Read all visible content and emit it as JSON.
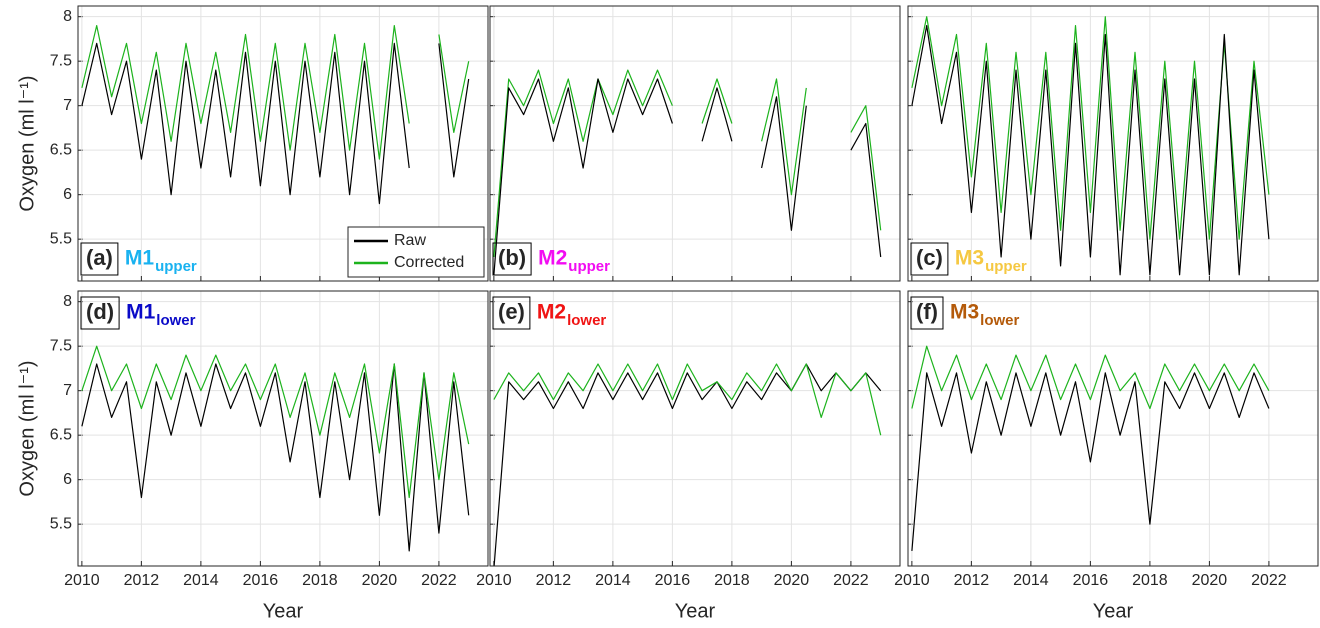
{
  "chart_data": [
    {
      "type": "line",
      "panel_label": "(a)",
      "station": "M1",
      "station_sub": "upper",
      "station_color": "#19b2f0",
      "ylabel": "Oxygen (ml l⁻¹)",
      "legend": "lower right",
      "x": [
        2010,
        2010.5,
        2011,
        2011.5,
        2012,
        2012.5,
        2013,
        2013.5,
        2014,
        2014.5,
        2015,
        2015.5,
        2016,
        2016.5,
        2017,
        2017.5,
        2018,
        2018.5,
        2019,
        2019.5,
        2020,
        2020.5,
        2021,
        2021.5,
        2022,
        2022.5,
        2023
      ],
      "series": [
        {
          "name": "Raw",
          "color": "#000000",
          "values": [
            7.0,
            7.7,
            6.9,
            7.5,
            6.4,
            7.4,
            6.0,
            7.5,
            6.3,
            7.4,
            6.2,
            7.6,
            6.1,
            7.5,
            6.0,
            7.5,
            6.2,
            7.6,
            6.0,
            7.5,
            5.9,
            7.7,
            6.3,
            null,
            7.7,
            6.2,
            7.3
          ]
        },
        {
          "name": "Corrected",
          "color": "#1db31d",
          "values": [
            7.2,
            7.9,
            7.1,
            7.7,
            6.8,
            7.6,
            6.6,
            7.7,
            6.8,
            7.6,
            6.7,
            7.8,
            6.6,
            7.7,
            6.5,
            7.7,
            6.7,
            7.8,
            6.5,
            7.7,
            6.4,
            7.9,
            6.8,
            null,
            7.8,
            6.7,
            7.5
          ]
        }
      ],
      "xlim": [
        2009.87,
        2023.65
      ],
      "xticks": [
        2010,
        2012,
        2014,
        2016,
        2018,
        2020,
        2022
      ],
      "ylim": [
        5.03,
        8.12
      ],
      "yticks": [
        5.5,
        6,
        6.5,
        7,
        7.5,
        8
      ],
      "grid": true
    },
    {
      "type": "line",
      "panel_label": "(b)",
      "station": "M2",
      "station_sub": "upper",
      "station_color": "#f20cf2",
      "x": [
        2010,
        2010.5,
        2011,
        2011.5,
        2012,
        2012.5,
        2013,
        2013.5,
        2014,
        2014.5,
        2015,
        2015.5,
        2016,
        2016.5,
        2017,
        2017.5,
        2018,
        2018.5,
        2019,
        2019.5,
        2020,
        2020.5,
        2021,
        2021.5,
        2022,
        2022.5,
        2023
      ],
      "series": [
        {
          "name": "Corrected",
          "color": "#1db31d",
          "values": [
            5.3,
            7.3,
            7.0,
            7.4,
            6.8,
            7.3,
            6.6,
            7.3,
            6.9,
            7.4,
            7.0,
            7.4,
            7.0,
            null,
            6.8,
            7.3,
            6.8,
            null,
            6.6,
            7.3,
            6.0,
            7.2,
            null,
            null,
            6.7,
            7.0,
            5.6
          ]
        },
        {
          "name": "Raw",
          "color": "#000000",
          "values": [
            5.1,
            7.2,
            6.9,
            7.3,
            6.6,
            7.2,
            6.3,
            7.3,
            6.7,
            7.3,
            6.9,
            7.3,
            6.8,
            null,
            6.6,
            7.2,
            6.6,
            null,
            6.3,
            7.1,
            5.6,
            7.0,
            null,
            null,
            6.5,
            6.8,
            5.3
          ]
        }
      ],
      "xlim": [
        2009.87,
        2023.65
      ],
      "xticks": [
        2010,
        2012,
        2014,
        2016,
        2018,
        2020,
        2022
      ],
      "ylim": [
        5.03,
        8.12
      ],
      "yticks": [
        5.5,
        6,
        6.5,
        7,
        7.5,
        8
      ],
      "grid": true
    },
    {
      "type": "line",
      "panel_label": "(c)",
      "station": "M3",
      "station_sub": "upper",
      "station_color": "#f5c842",
      "x": [
        2010,
        2010.5,
        2011,
        2011.5,
        2012,
        2012.5,
        2013,
        2013.5,
        2014,
        2014.5,
        2015,
        2015.5,
        2016,
        2016.5,
        2017,
        2017.5,
        2018,
        2018.5,
        2019,
        2019.5,
        2020,
        2020.5,
        2021,
        2021.5,
        2022
      ],
      "series": [
        {
          "name": "Corrected",
          "color": "#1db31d",
          "values": [
            7.2,
            8.0,
            7.0,
            7.8,
            6.2,
            7.7,
            5.8,
            7.6,
            6.0,
            7.6,
            5.6,
            7.9,
            5.8,
            8.0,
            5.6,
            7.6,
            5.5,
            7.5,
            5.5,
            7.5,
            5.5,
            7.7,
            5.5,
            7.5,
            6.0
          ]
        },
        {
          "name": "Raw",
          "color": "#000000",
          "values": [
            7.0,
            7.9,
            6.8,
            7.6,
            5.8,
            7.5,
            5.3,
            7.4,
            5.5,
            7.4,
            5.2,
            7.7,
            5.3,
            7.8,
            5.1,
            7.4,
            5.1,
            7.3,
            5.1,
            7.3,
            5.1,
            7.8,
            5.1,
            7.4,
            5.5
          ]
        }
      ],
      "xlim": [
        2009.87,
        2023.65
      ],
      "xticks": [
        2010,
        2012,
        2014,
        2016,
        2018,
        2020,
        2022
      ],
      "ylim": [
        5.03,
        8.12
      ],
      "yticks": [
        5.5,
        6,
        6.5,
        7,
        7.5,
        8
      ],
      "grid": true
    },
    {
      "type": "line",
      "panel_label": "(d)",
      "station": "M1",
      "station_sub": "lower",
      "station_color": "#0a0ac8",
      "ylabel": "Oxygen (ml l⁻¹)",
      "xlabel": "Year",
      "x": [
        2010,
        2010.5,
        2011,
        2011.5,
        2012,
        2012.5,
        2013,
        2013.5,
        2014,
        2014.5,
        2015,
        2015.5,
        2016,
        2016.5,
        2017,
        2017.5,
        2018,
        2018.5,
        2019,
        2019.5,
        2020,
        2020.5,
        2021,
        2021.5,
        2022,
        2022.5,
        2023
      ],
      "series": [
        {
          "name": "Raw",
          "color": "#000000",
          "values": [
            6.6,
            7.3,
            6.7,
            7.1,
            5.8,
            7.1,
            6.5,
            7.2,
            6.6,
            7.3,
            6.8,
            7.2,
            6.6,
            7.2,
            6.2,
            7.1,
            5.8,
            7.1,
            6.0,
            7.2,
            5.6,
            7.3,
            5.2,
            7.2,
            5.4,
            7.1,
            5.6
          ]
        },
        {
          "name": "Corrected",
          "color": "#1db31d",
          "values": [
            7.0,
            7.5,
            7.0,
            7.3,
            6.8,
            7.3,
            6.9,
            7.4,
            7.0,
            7.4,
            7.0,
            7.3,
            6.9,
            7.3,
            6.7,
            7.2,
            6.5,
            7.2,
            6.7,
            7.3,
            6.3,
            7.3,
            5.8,
            7.2,
            6.0,
            7.2,
            6.4
          ]
        }
      ],
      "xlim": [
        2009.87,
        2023.65
      ],
      "xticks": [
        2010,
        2012,
        2014,
        2016,
        2018,
        2020,
        2022
      ],
      "ylim": [
        5.03,
        8.12
      ],
      "yticks": [
        5.5,
        6,
        6.5,
        7,
        7.5,
        8
      ],
      "grid": true
    },
    {
      "type": "line",
      "panel_label": "(e)",
      "station": "M2",
      "station_sub": "lower",
      "station_color": "#f01414",
      "xlabel": "Year",
      "x": [
        2010,
        2010.5,
        2011,
        2011.5,
        2012,
        2012.5,
        2013,
        2013.5,
        2014,
        2014.5,
        2015,
        2015.5,
        2016,
        2016.5,
        2017,
        2017.5,
        2018,
        2018.5,
        2019,
        2019.5,
        2020,
        2020.5,
        2021,
        2021.5,
        2022,
        2022.5,
        2023
      ],
      "series": [
        {
          "name": "Raw",
          "color": "#000000",
          "values": [
            5.0,
            7.1,
            6.9,
            7.1,
            6.8,
            7.1,
            6.8,
            7.2,
            6.9,
            7.2,
            6.9,
            7.2,
            6.8,
            7.2,
            6.9,
            7.1,
            6.8,
            7.1,
            6.9,
            7.2,
            7.0,
            7.3,
            7.0,
            7.2,
            7.0,
            7.2,
            7.0
          ]
        },
        {
          "name": "Corrected",
          "color": "#1db31d",
          "values": [
            6.9,
            7.2,
            7.0,
            7.2,
            6.9,
            7.2,
            7.0,
            7.3,
            7.0,
            7.3,
            7.0,
            7.3,
            6.9,
            7.3,
            7.0,
            7.1,
            6.9,
            7.2,
            7.0,
            7.3,
            7.0,
            7.3,
            6.7,
            7.2,
            7.0,
            7.2,
            6.5
          ]
        }
      ],
      "xlim": [
        2009.87,
        2023.65
      ],
      "xticks": [
        2010,
        2012,
        2014,
        2016,
        2018,
        2020,
        2022
      ],
      "ylim": [
        5.03,
        8.12
      ],
      "yticks": [
        5.5,
        6,
        6.5,
        7,
        7.5,
        8
      ],
      "grid": true
    },
    {
      "type": "line",
      "panel_label": "(f)",
      "station": "M3",
      "station_sub": "lower",
      "station_color": "#b45a0a",
      "xlabel": "Year",
      "x": [
        2010,
        2010.5,
        2011,
        2011.5,
        2012,
        2012.5,
        2013,
        2013.5,
        2014,
        2014.5,
        2015,
        2015.5,
        2016,
        2016.5,
        2017,
        2017.5,
        2018,
        2018.5,
        2019,
        2019.5,
        2020,
        2020.5,
        2021,
        2021.5,
        2022
      ],
      "series": [
        {
          "name": "Raw",
          "color": "#000000",
          "values": [
            5.2,
            7.2,
            6.6,
            7.2,
            6.3,
            7.1,
            6.5,
            7.2,
            6.6,
            7.2,
            6.5,
            7.1,
            6.2,
            7.2,
            6.5,
            7.1,
            5.5,
            7.1,
            6.8,
            7.2,
            6.8,
            7.2,
            6.7,
            7.2,
            6.8
          ]
        },
        {
          "name": "Corrected",
          "color": "#1db31d",
          "values": [
            6.8,
            7.5,
            7.0,
            7.4,
            6.9,
            7.3,
            6.9,
            7.4,
            7.0,
            7.4,
            6.9,
            7.3,
            6.9,
            7.4,
            7.0,
            7.2,
            6.8,
            7.3,
            7.0,
            7.3,
            7.0,
            7.3,
            7.0,
            7.3,
            7.0
          ]
        }
      ],
      "xlim": [
        2009.87,
        2023.65
      ],
      "xticks": [
        2010,
        2012,
        2014,
        2016,
        2018,
        2020,
        2022
      ],
      "ylim": [
        5.03,
        8.12
      ],
      "yticks": [
        5.5,
        6,
        6.5,
        7,
        7.5,
        8
      ],
      "grid": true
    }
  ]
}
